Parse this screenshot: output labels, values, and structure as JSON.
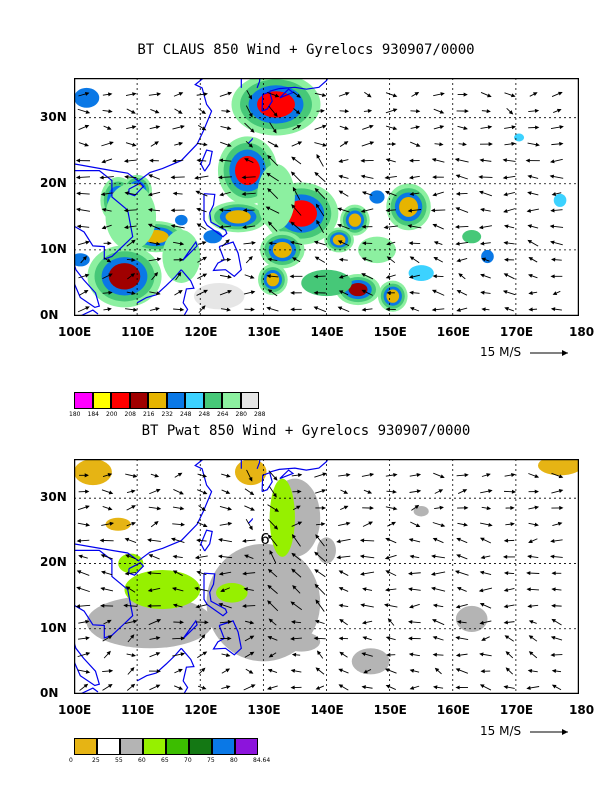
{
  "chart_data": [
    {
      "type": "heatmap",
      "title": "BT CLAUS 850 Wind + Gyrelocs 930907/0000",
      "xlim": [
        100,
        180
      ],
      "ylim": [
        0,
        36
      ],
      "x_ticks": [
        "100E",
        "110E",
        "120E",
        "130E",
        "140E",
        "150E",
        "160E",
        "170E",
        "180"
      ],
      "y_ticks": [
        "0N",
        "10N",
        "20N",
        "30N"
      ],
      "reference_vector_label": "15 M/S",
      "colorbar": {
        "levels": [
          "180",
          "184",
          "200",
          "208",
          "216",
          "232",
          "248",
          "248",
          "264",
          "280",
          "288"
        ],
        "colors": [
          "#ff00ff",
          "#ffff00",
          "#ff0000",
          "#a00000",
          "#e6b400",
          "#0a78e6",
          "#3cd2ff",
          "#46c878",
          "#8cf0a0",
          "#e6e6e6"
        ]
      },
      "features": [
        {
          "lon": 127.5,
          "lat": 22,
          "rx": 2,
          "ry": 2.2,
          "level": 2
        },
        {
          "lon": 136,
          "lat": 15.5,
          "rx": 2.5,
          "ry": 2,
          "level": 2
        },
        {
          "lon": 132,
          "lat": 32,
          "rx": 3,
          "ry": 2,
          "level": 2
        },
        {
          "lon": 108,
          "lat": 6,
          "rx": 2.5,
          "ry": 2,
          "level": 3
        },
        {
          "lon": 107,
          "lat": 17.5,
          "rx": 1.2,
          "ry": 1.5,
          "level": 3
        },
        {
          "lon": 113,
          "lat": 12,
          "rx": 2,
          "ry": 1,
          "level": 4
        },
        {
          "lon": 126,
          "lat": 15,
          "rx": 2,
          "ry": 1,
          "level": 4
        },
        {
          "lon": 145,
          "lat": 4,
          "rx": 1.5,
          "ry": 1,
          "level": 3
        },
        {
          "lon": 153,
          "lat": 16.5,
          "rx": 1.5,
          "ry": 1.5,
          "level": 4
        },
        {
          "lon": 144.5,
          "lat": 14.5,
          "rx": 1,
          "ry": 1,
          "level": 4
        },
        {
          "lon": 133,
          "lat": 10,
          "rx": 1.5,
          "ry": 1.2,
          "level": 4
        },
        {
          "lon": 131.5,
          "lat": 5.5,
          "rx": 1,
          "ry": 1,
          "level": 4
        },
        {
          "lon": 150.5,
          "lat": 3,
          "rx": 1,
          "ry": 1,
          "level": 4
        },
        {
          "lon": 142,
          "lat": 11.5,
          "rx": 1,
          "ry": 0.8,
          "level": 4
        },
        {
          "lon": 117,
          "lat": 14.5,
          "rx": 1,
          "ry": 0.8,
          "level": 5
        },
        {
          "lon": 122,
          "lat": 12,
          "rx": 1.5,
          "ry": 1,
          "level": 5
        },
        {
          "lon": 110,
          "lat": 19,
          "rx": 1,
          "ry": 1,
          "level": 4
        },
        {
          "lon": 102,
          "lat": 33,
          "rx": 2,
          "ry": 1.5,
          "level": 5
        },
        {
          "lon": 101,
          "lat": 8.5,
          "rx": 1.5,
          "ry": 1,
          "level": 5
        },
        {
          "lon": 148,
          "lat": 18,
          "rx": 1.2,
          "ry": 1,
          "level": 5
        },
        {
          "lon": 165.5,
          "lat": 9,
          "rx": 1,
          "ry": 1,
          "level": 5
        },
        {
          "lon": 177,
          "lat": 17.5,
          "rx": 1,
          "ry": 1,
          "level": 6
        },
        {
          "lon": 155,
          "lat": 6.5,
          "rx": 2,
          "ry": 1.2,
          "level": 6
        },
        {
          "lon": 163,
          "lat": 12,
          "rx": 1.5,
          "ry": 1,
          "level": 7
        },
        {
          "lon": 170.5,
          "lat": 27,
          "rx": 0.8,
          "ry": 0.6,
          "level": 6
        },
        {
          "lon": 140,
          "lat": 5,
          "rx": 4,
          "ry": 2,
          "level": 7
        },
        {
          "lon": 117,
          "lat": 9,
          "rx": 3,
          "ry": 4,
          "level": 8
        },
        {
          "lon": 132,
          "lat": 18,
          "rx": 3,
          "ry": 5,
          "level": 8
        },
        {
          "lon": 109,
          "lat": 15,
          "rx": 4,
          "ry": 5,
          "level": 8
        },
        {
          "lon": 148,
          "lat": 10,
          "rx": 3,
          "ry": 2,
          "level": 8
        },
        {
          "lon": 123,
          "lat": 3,
          "rx": 4,
          "ry": 2,
          "level": 9
        }
      ]
    },
    {
      "type": "heatmap",
      "title": "BT Pwat 850 Wind + Gyrelocs 930907/0000",
      "xlim": [
        100,
        180
      ],
      "ylim": [
        0,
        36
      ],
      "x_ticks": [
        "100E",
        "110E",
        "120E",
        "130E",
        "140E",
        "150E",
        "160E",
        "170E",
        "180"
      ],
      "y_ticks": [
        "0N",
        "10N",
        "20N",
        "30N"
      ],
      "reference_vector_label": "15 M/S",
      "gyre_marker": {
        "label": "6",
        "lon": 129.5,
        "lat": 23
      },
      "colorbar": {
        "levels": [
          "0",
          "25",
          "55",
          "60",
          "65",
          "70",
          "75",
          "80",
          "84.64"
        ],
        "colors": [
          "#e6b414",
          "#ffffff",
          "#b4b4b4",
          "#96f000",
          "#3cbe00",
          "#147814",
          "#0a78e6",
          "#8c14dc"
        ]
      },
      "features": [
        {
          "lon": 103,
          "lat": 34,
          "rx": 3,
          "ry": 2,
          "level": 0
        },
        {
          "lon": 107,
          "lat": 26,
          "rx": 2,
          "ry": 1,
          "level": 0
        },
        {
          "lon": 128,
          "lat": 34,
          "rx": 2.5,
          "ry": 2,
          "level": 0
        },
        {
          "lon": 177,
          "lat": 35,
          "rx": 3.5,
          "ry": 1.5,
          "level": 0
        },
        {
          "lon": 130,
          "lat": 14,
          "rx": 9,
          "ry": 9,
          "level": 2
        },
        {
          "lon": 112,
          "lat": 11,
          "rx": 10,
          "ry": 4,
          "level": 2
        },
        {
          "lon": 135,
          "lat": 27,
          "rx": 4,
          "ry": 6,
          "level": 2
        },
        {
          "lon": 147,
          "lat": 5,
          "rx": 3,
          "ry": 2,
          "level": 2
        },
        {
          "lon": 163,
          "lat": 11.5,
          "rx": 2.5,
          "ry": 2,
          "level": 2
        },
        {
          "lon": 136,
          "lat": 8,
          "rx": 3,
          "ry": 1.5,
          "level": 2
        },
        {
          "lon": 140,
          "lat": 22,
          "rx": 1.5,
          "ry": 2,
          "level": 2
        },
        {
          "lon": 155,
          "lat": 28,
          "rx": 1.2,
          "ry": 0.8,
          "level": 2
        },
        {
          "lon": 114,
          "lat": 16,
          "rx": 6,
          "ry": 3,
          "level": 3
        },
        {
          "lon": 133,
          "lat": 27,
          "rx": 2,
          "ry": 6,
          "level": 3
        },
        {
          "lon": 125,
          "lat": 15.5,
          "rx": 2.5,
          "ry": 1.5,
          "level": 3
        },
        {
          "lon": 109,
          "lat": 20,
          "rx": 2,
          "ry": 1.5,
          "level": 3
        }
      ]
    }
  ]
}
